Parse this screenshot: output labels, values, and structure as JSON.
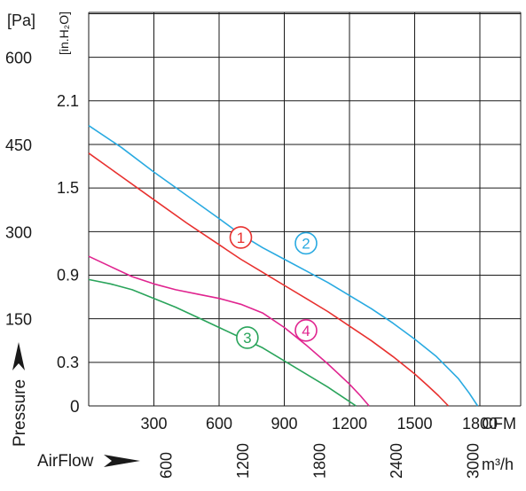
{
  "chart_data": {
    "type": "line",
    "title": "",
    "pressure_unit_pa": "[Pa]",
    "pressure_unit_inh2o": "[in.H₂O]",
    "pa_ticks": [
      {
        "value": 600,
        "label": "600"
      },
      {
        "value": 450,
        "label": "450"
      },
      {
        "value": 300,
        "label": "300"
      },
      {
        "value": 150,
        "label": "150"
      }
    ],
    "inh2o_ticks": [
      {
        "value": 2.1,
        "label": "2.1"
      },
      {
        "value": 1.5,
        "label": "1.5"
      },
      {
        "value": 0.9,
        "label": "0.9"
      },
      {
        "value": 0.3,
        "label": "0.3"
      }
    ],
    "zero_label": "0",
    "cfm_unit": "CFM",
    "cfm_ticks": [
      {
        "value": 300,
        "label": "300"
      },
      {
        "value": 600,
        "label": "600"
      },
      {
        "value": 900,
        "label": "900"
      },
      {
        "value": 1200,
        "label": "1200"
      },
      {
        "value": 1500,
        "label": "1500"
      },
      {
        "value": 1800,
        "label": "1800"
      }
    ],
    "m3h_unit": "m³/h",
    "m3h_ticks": [
      {
        "value": 600,
        "label": "600"
      },
      {
        "value": 1200,
        "label": "1200"
      },
      {
        "value": 1800,
        "label": "1800"
      },
      {
        "value": 2400,
        "label": "2400"
      },
      {
        "value": 3000,
        "label": "3000"
      }
    ],
    "ylabel": "Pressure",
    "xlabel": "AirFlow",
    "xlim_cfm": [
      0,
      2050
    ],
    "ylim_inh2o": [
      0,
      2.7
    ],
    "grid": true,
    "series": [
      {
        "name": "1",
        "color": "#e8312f",
        "x": [
          0,
          150,
          300,
          450,
          600,
          700,
          800,
          900,
          1000,
          1100,
          1200,
          1300,
          1400,
          1500,
          1560,
          1610,
          1655
        ],
        "y": [
          1.74,
          1.58,
          1.42,
          1.26,
          1.11,
          1.01,
          0.92,
          0.83,
          0.74,
          0.65,
          0.55,
          0.45,
          0.34,
          0.22,
          0.14,
          0.07,
          0
        ]
      },
      {
        "name": "2",
        "color": "#29aae1",
        "x": [
          0,
          150,
          300,
          450,
          600,
          700,
          800,
          900,
          1000,
          1100,
          1200,
          1300,
          1400,
          1500,
          1600,
          1700,
          1750,
          1790
        ],
        "y": [
          1.93,
          1.78,
          1.61,
          1.45,
          1.29,
          1.18,
          1.09,
          1.01,
          0.93,
          0.85,
          0.76,
          0.67,
          0.57,
          0.46,
          0.34,
          0.19,
          0.09,
          0
        ]
      },
      {
        "name": "3",
        "color": "#2aa45b",
        "x": [
          0,
          100,
          200,
          300,
          400,
          500,
          600,
          700,
          800,
          900,
          1000,
          1100,
          1150,
          1200,
          1230
        ],
        "y": [
          0.87,
          0.84,
          0.8,
          0.74,
          0.68,
          0.61,
          0.54,
          0.47,
          0.4,
          0.31,
          0.22,
          0.13,
          0.08,
          0.03,
          0
        ]
      },
      {
        "name": "4",
        "color": "#e0248f",
        "x": [
          0,
          100,
          200,
          300,
          400,
          500,
          600,
          700,
          800,
          900,
          1000,
          1100,
          1200,
          1250,
          1290
        ],
        "y": [
          1.03,
          0.96,
          0.89,
          0.84,
          0.8,
          0.77,
          0.74,
          0.7,
          0.64,
          0.54,
          0.42,
          0.29,
          0.15,
          0.07,
          0
        ]
      }
    ],
    "markers": [
      {
        "label": "1",
        "color": "#e8312f",
        "x": 700,
        "y": 1.16
      },
      {
        "label": "2",
        "color": "#29aae1",
        "x": 1000,
        "y": 1.12
      },
      {
        "label": "3",
        "color": "#2aa45b",
        "x": 730,
        "y": 0.47
      },
      {
        "label": "4",
        "color": "#e0248f",
        "x": 1000,
        "y": 0.52
      }
    ]
  }
}
